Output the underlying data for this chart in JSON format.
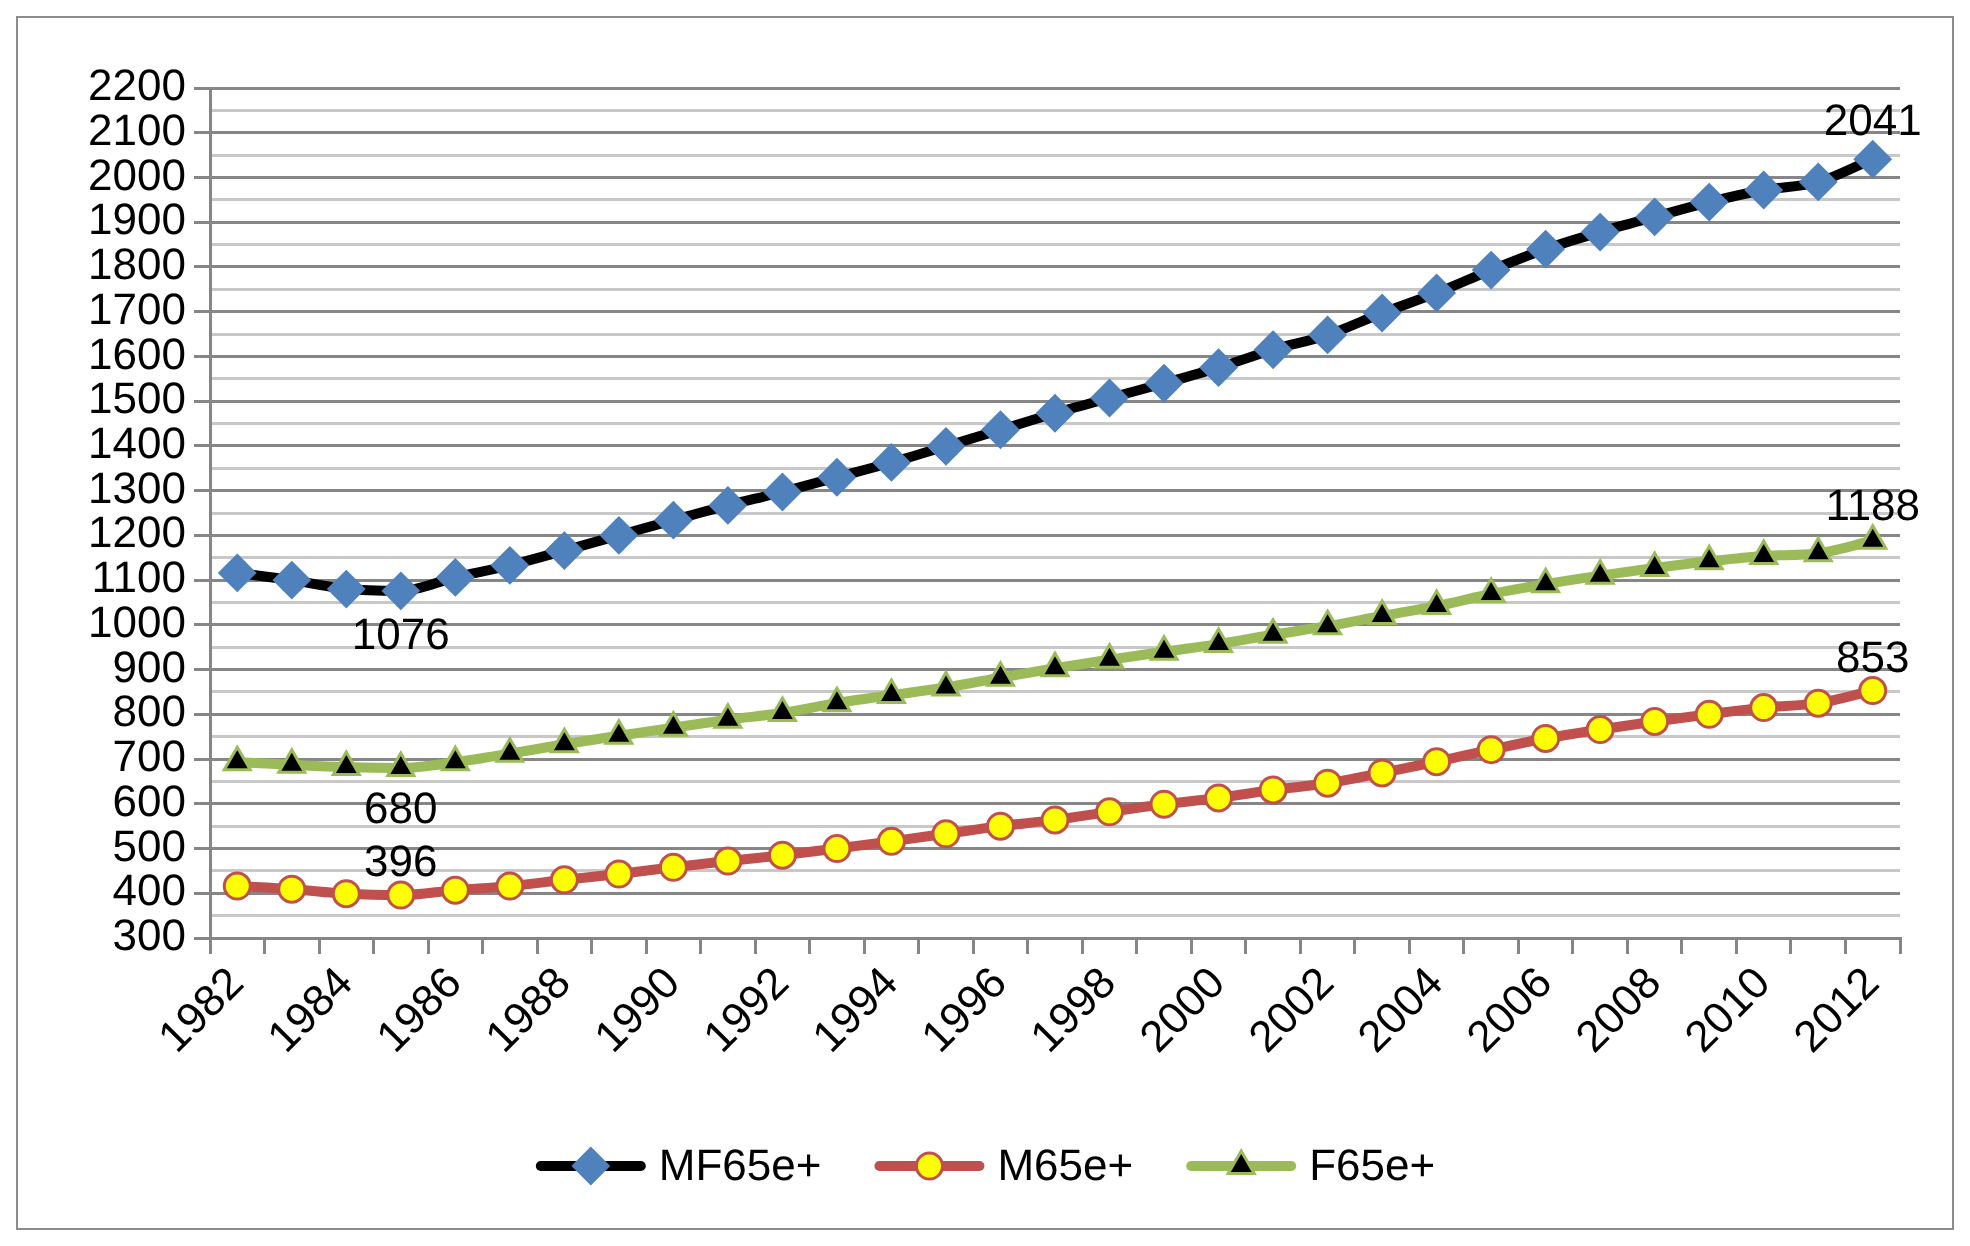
{
  "chart_data": {
    "type": "line",
    "categories": [
      "1982",
      null,
      "1984",
      null,
      "1986",
      null,
      "1988",
      null,
      "1990",
      null,
      "1992",
      null,
      "1994",
      null,
      "1996",
      null,
      "1998",
      null,
      "2000",
      null,
      "2002",
      null,
      "2004",
      null,
      "2006",
      null,
      "2008",
      null,
      "2010",
      null,
      "2012"
    ],
    "series": [
      {
        "name": "MF65e+",
        "color": "#000000",
        "marker": "diamond",
        "values": [
          1116,
          1100,
          1080,
          1076,
          1106,
          1133,
          1166,
          1200,
          1234,
          1267,
          1297,
          1330,
          1363,
          1399,
          1436,
          1473,
          1507,
          1540,
          1575,
          1615,
          1648,
          1697,
          1742,
          1793,
          1840,
          1878,
          1912,
          1945,
          1972,
          1990,
          2041
        ],
        "value_labels": [
          null,
          null,
          null,
          "1076",
          null,
          null,
          null,
          null,
          null,
          null,
          null,
          null,
          null,
          null,
          null,
          null,
          null,
          null,
          null,
          null,
          null,
          null,
          null,
          null,
          null,
          null,
          null,
          null,
          null,
          null,
          "2041"
        ]
      },
      {
        "name": "M65e+",
        "color": "#c0504d",
        "marker": "circle",
        "values": [
          416,
          409,
          399,
          396,
          407,
          416,
          430,
          443,
          458,
          472,
          485,
          500,
          516,
          533,
          550,
          564,
          582,
          599,
          613,
          631,
          646,
          669,
          694,
          721,
          746,
          766,
          784,
          800,
          815,
          825,
          853
        ],
        "value_labels": [
          null,
          null,
          null,
          "396",
          null,
          null,
          null,
          null,
          null,
          null,
          null,
          null,
          null,
          null,
          null,
          null,
          null,
          null,
          null,
          null,
          null,
          null,
          null,
          null,
          null,
          null,
          null,
          null,
          null,
          null,
          "853"
        ]
      },
      {
        "name": "F65e+",
        "color": "#9bbb59",
        "marker": "triangle",
        "values": [
          693,
          687,
          682,
          680,
          693,
          712,
          733,
          752,
          770,
          788,
          803,
          825,
          843,
          860,
          882,
          903,
          922,
          940,
          957,
          978,
          997,
          1020,
          1042,
          1069,
          1091,
          1110,
          1127,
          1142,
          1154,
          1160,
          1188
        ],
        "value_labels": [
          null,
          null,
          null,
          "680",
          null,
          null,
          null,
          null,
          null,
          null,
          null,
          null,
          null,
          null,
          null,
          null,
          null,
          null,
          null,
          null,
          null,
          null,
          null,
          null,
          null,
          null,
          null,
          null,
          null,
          null,
          "1188"
        ]
      }
    ],
    "ylim": [
      300,
      2200
    ],
    "yticks": [
      300,
      {
        "value": 350,
        "label": null
      },
      400,
      {
        "value": 450,
        "label": null
      },
      500,
      {
        "value": 550,
        "label": null
      },
      600,
      {
        "value": 650,
        "label": null
      },
      700,
      {
        "value": 750,
        "label": null
      },
      800,
      {
        "value": 850,
        "label": null
      },
      900,
      {
        "value": 950,
        "label": null
      },
      1000,
      {
        "value": 1050,
        "label": null
      },
      1100,
      {
        "value": 1150,
        "label": null
      },
      1200,
      {
        "value": 1250,
        "label": null
      },
      1300,
      {
        "value": 1350,
        "label": null
      },
      1400,
      {
        "value": 1450,
        "label": null
      },
      1500,
      {
        "value": 1550,
        "label": null
      },
      1600,
      {
        "value": 1650,
        "label": null
      },
      1700,
      {
        "value": 1750,
        "label": null
      },
      1800,
      {
        "value": 1850,
        "label": null
      },
      1900,
      {
        "value": 1950,
        "label": null
      },
      2000,
      {
        "value": 2050,
        "label": null
      },
      2100,
      {
        "value": 2150,
        "label": null
      },
      2200
    ],
    "grid": "y",
    "legend": "bottom"
  }
}
